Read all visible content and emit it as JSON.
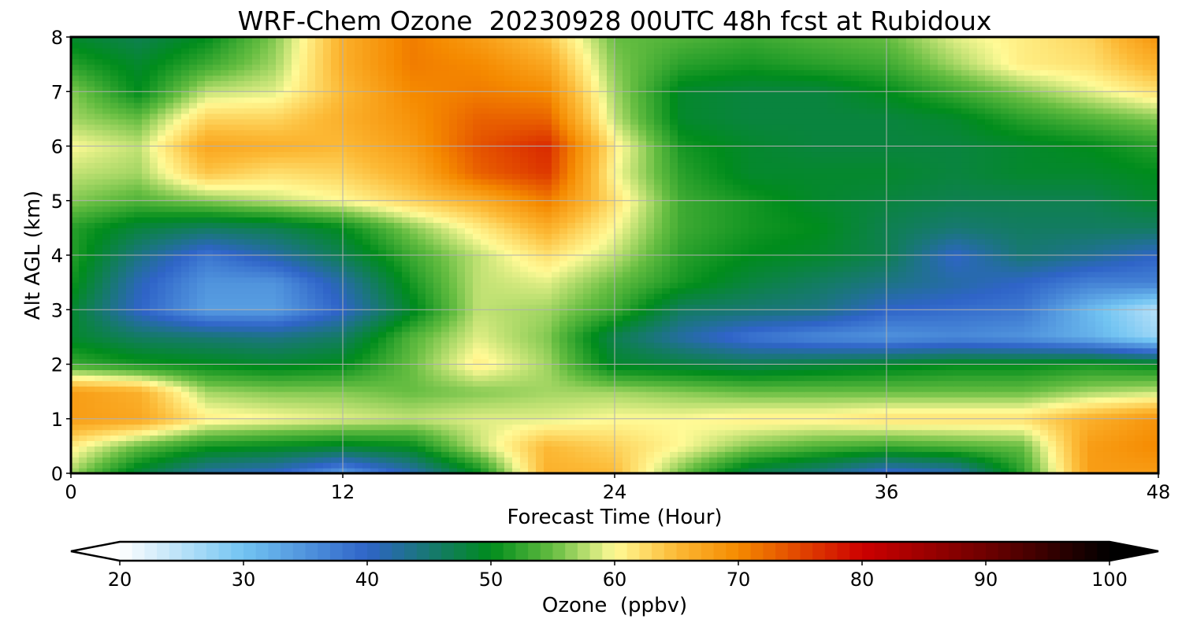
{
  "chart_data": {
    "type": "heatmap",
    "title": "WRF-Chem Ozone  20230928 00UTC 48h fcst at Rubidoux",
    "xlabel": "Forecast Time (Hour)",
    "ylabel": "Alt AGL (km)",
    "xlim": [
      0,
      48
    ],
    "ylim": [
      0,
      8
    ],
    "xticks": [
      0,
      12,
      24,
      36,
      48
    ],
    "yticks": [
      0,
      1,
      2,
      3,
      4,
      5,
      6,
      7,
      8
    ],
    "grid": true,
    "x": [
      0,
      3,
      6,
      9,
      12,
      15,
      18,
      21,
      24,
      27,
      30,
      33,
      36,
      39,
      42,
      45,
      48
    ],
    "y": [
      0,
      0.5,
      1,
      1.5,
      2,
      2.5,
      3,
      3.5,
      4,
      4.5,
      5,
      5.5,
      6,
      6.5,
      7,
      7.5,
      8
    ],
    "z": [
      [
        57,
        48,
        42,
        40,
        34,
        41,
        50,
        66,
        65,
        55,
        47,
        44,
        39,
        41,
        52,
        68,
        68
      ],
      [
        61,
        55,
        51,
        50,
        49,
        50,
        58,
        65,
        63,
        60,
        56,
        54,
        53,
        54,
        55,
        68,
        70
      ],
      [
        68,
        67,
        61,
        60,
        59,
        58,
        59,
        59,
        60,
        60,
        61,
        61,
        62,
        62,
        62,
        66,
        69
      ],
      [
        68,
        66,
        57,
        56,
        56,
        55,
        56,
        57,
        57,
        56,
        55,
        55,
        55,
        55,
        55,
        57,
        58
      ],
      [
        53,
        51,
        50,
        49,
        50,
        55,
        61,
        57,
        49,
        48,
        47,
        48,
        49,
        50,
        50,
        51,
        50
      ],
      [
        49,
        46,
        45,
        44,
        46,
        54,
        59,
        56,
        47,
        42,
        38,
        36,
        35,
        36,
        35,
        32,
        27
      ],
      [
        49,
        40,
        34,
        34,
        40,
        49,
        58,
        57,
        53,
        46,
        45,
        44,
        40,
        39,
        38,
        31,
        25
      ],
      [
        51,
        41,
        35,
        35,
        42,
        51,
        58,
        59,
        55,
        51,
        48,
        46,
        44,
        42,
        40,
        37,
        37
      ],
      [
        52,
        44,
        38,
        42,
        47,
        53,
        58,
        62,
        58,
        52,
        50,
        49,
        47,
        40,
        45,
        43,
        40
      ],
      [
        52,
        48,
        46,
        47,
        50,
        56,
        61,
        66,
        60,
        53,
        51,
        50,
        47,
        45,
        46,
        46,
        46
      ],
      [
        56,
        54,
        56,
        58,
        60,
        63,
        66,
        71,
        62,
        53,
        51,
        49,
        48,
        47,
        47,
        47,
        49
      ],
      [
        58,
        57,
        64,
        62,
        63,
        66,
        73,
        76,
        60,
        52,
        49,
        49,
        49,
        48,
        49,
        49,
        50
      ],
      [
        60,
        58,
        67,
        66,
        65,
        68,
        74,
        77,
        61,
        51,
        49,
        48,
        48,
        48,
        49,
        50,
        52
      ],
      [
        57,
        55,
        63,
        63,
        66,
        69,
        73,
        73,
        58,
        49,
        48,
        48,
        48,
        49,
        52,
        54,
        56
      ],
      [
        56,
        50,
        58,
        59,
        65,
        70,
        71,
        70,
        57,
        49,
        48,
        48,
        50,
        53,
        56,
        59,
        62
      ],
      [
        52,
        49,
        53,
        57,
        66,
        71,
        70,
        67,
        56,
        52,
        51,
        52,
        53,
        57,
        61,
        62,
        66
      ],
      [
        49,
        47,
        50,
        56,
        66,
        71,
        68,
        64,
        55,
        54,
        53,
        54,
        55,
        59,
        61,
        63,
        69
      ]
    ],
    "colorbar": {
      "label": "Ozone  (ppbv)",
      "min": 20,
      "max": 100,
      "ticks": [
        20,
        30,
        40,
        50,
        60,
        70,
        80,
        90,
        100
      ],
      "extend": "both",
      "colormap": [
        {
          "v": 20,
          "c": "#ffffff"
        },
        {
          "v": 30,
          "c": "#72c4f2"
        },
        {
          "v": 40,
          "c": "#2f64c8"
        },
        {
          "v": 50,
          "c": "#008c1c"
        },
        {
          "v": 55,
          "c": "#65bd41"
        },
        {
          "v": 60,
          "c": "#fffa96"
        },
        {
          "v": 65,
          "c": "#fcb935"
        },
        {
          "v": 70,
          "c": "#f58a00"
        },
        {
          "v": 80,
          "c": "#cd0000"
        },
        {
          "v": 90,
          "c": "#6e0000"
        },
        {
          "v": 100,
          "c": "#000000"
        }
      ]
    }
  }
}
